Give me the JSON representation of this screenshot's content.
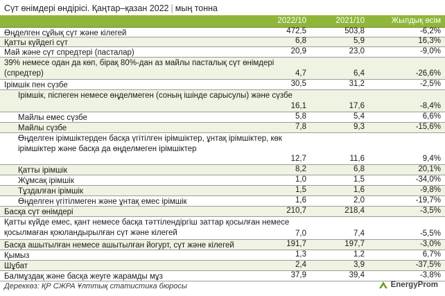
{
  "title": "Сүт өнімдері өндірісі. Қаңтар–қазан 2022",
  "unit": "мың тонна",
  "columns": [
    "2022/10",
    "2021/10",
    "Жылдық өсім"
  ],
  "rows": [
    {
      "label": "Өңделген сұйық сүт және кілегей",
      "v2022": "472,5",
      "v2021": "503,8",
      "growth": "-6,2%",
      "indent": false
    },
    {
      "label": "Қатты күйдегі сүт",
      "v2022": "6,8",
      "v2021": "5,9",
      "growth": "16,3%",
      "indent": false
    },
    {
      "label": "Май және сүт спредтері (пасталар)",
      "v2022": "20,9",
      "v2021": "23,0",
      "growth": "-9,0%",
      "indent": false
    },
    {
      "label": "39% немесе одан да көп, бірақ 80%-дан аз майлы пасталық сүт өнімдері (спредтер)",
      "v2022": "4,7",
      "v2021": "6,4",
      "growth": "-26,6%",
      "indent": false
    },
    {
      "label": "Ірімшік пен сүзбе",
      "v2022": "30,5",
      "v2021": "31,2",
      "growth": "-2,5%",
      "indent": false
    },
    {
      "label": "Ірімшік, піспеген немесе өңделмеген (соның ішінде сарысулы) және сүзбе",
      "v2022": "16,1",
      "v2021": "17,6",
      "growth": "-8,4%",
      "indent": true
    },
    {
      "label": "Майлы емес сүзбе",
      "v2022": "5,8",
      "v2021": "5,4",
      "growth": "6,6%",
      "indent": true
    },
    {
      "label": "Майлы сүзбе",
      "v2022": "7,8",
      "v2021": "9,3",
      "growth": "-15,6%",
      "indent": true
    },
    {
      "label": "Өңделген ірімшіктерден басқа үгітілген ірімшіктер, ұнтақ ірімшіктер, көк ірімшіктер және басқа да өңделмеген ірімшіктер",
      "v2022": "12,7",
      "v2021": "11,6",
      "growth": "9,4%",
      "indent": true
    },
    {
      "label": "Қатты ірімшік",
      "v2022": "8,2",
      "v2021": "6,8",
      "growth": "20,1%",
      "indent": true
    },
    {
      "label": "Жұмсақ ірімшік",
      "v2022": "1,0",
      "v2021": "1,5",
      "growth": "-34,0%",
      "indent": true
    },
    {
      "label": "Тұздалған ірімшік",
      "v2022": "1,5",
      "v2021": "1,6",
      "growth": "-9,8%",
      "indent": true
    },
    {
      "label": "Өңделген үгітілмеген және ұнтақ емес ірімшік",
      "v2022": "1,6",
      "v2021": "2,0",
      "growth": "-19,7%",
      "indent": true
    },
    {
      "label": "Басқа сүт өнімдері",
      "v2022": "210,7",
      "v2021": "218,4",
      "growth": "-3,5%",
      "indent": false
    },
    {
      "label": "Қатты күйде емес, қант немесе басқа тәттілендіргіш заттар қосылған немесе қосылмаған қоюландырылған сүт және кілегей",
      "v2022": "7,0",
      "v2021": "7,4",
      "growth": "-5,5%",
      "indent": false
    },
    {
      "label": "Басқа ашытылған немесе ашытылған йогурт, сүт және кілегей",
      "v2022": "191,7",
      "v2021": "197,7",
      "growth": "-3,0%",
      "indent": false
    },
    {
      "label": "Қымыз",
      "v2022": "1,3",
      "v2021": "1,2",
      "growth": "6,7%",
      "indent": false
    },
    {
      "label": "Шұбат",
      "v2022": "2,4",
      "v2021": "3,9",
      "growth": "-37,5%",
      "indent": false
    },
    {
      "label": "Балмұздақ және басқа жеуге жарамды мұз",
      "v2022": "37,9",
      "v2021": "39,4",
      "growth": "-3,8%",
      "indent": false
    }
  ],
  "source": "Дереккөз: ҚР СЖРА Ұлттық статистика бюросы",
  "logo_text": "EnergyProm",
  "colors": {
    "header_bg": "#8fb63a",
    "alt_row_bg": "#eef3e2",
    "logo_accent": "#6d9f1e"
  }
}
